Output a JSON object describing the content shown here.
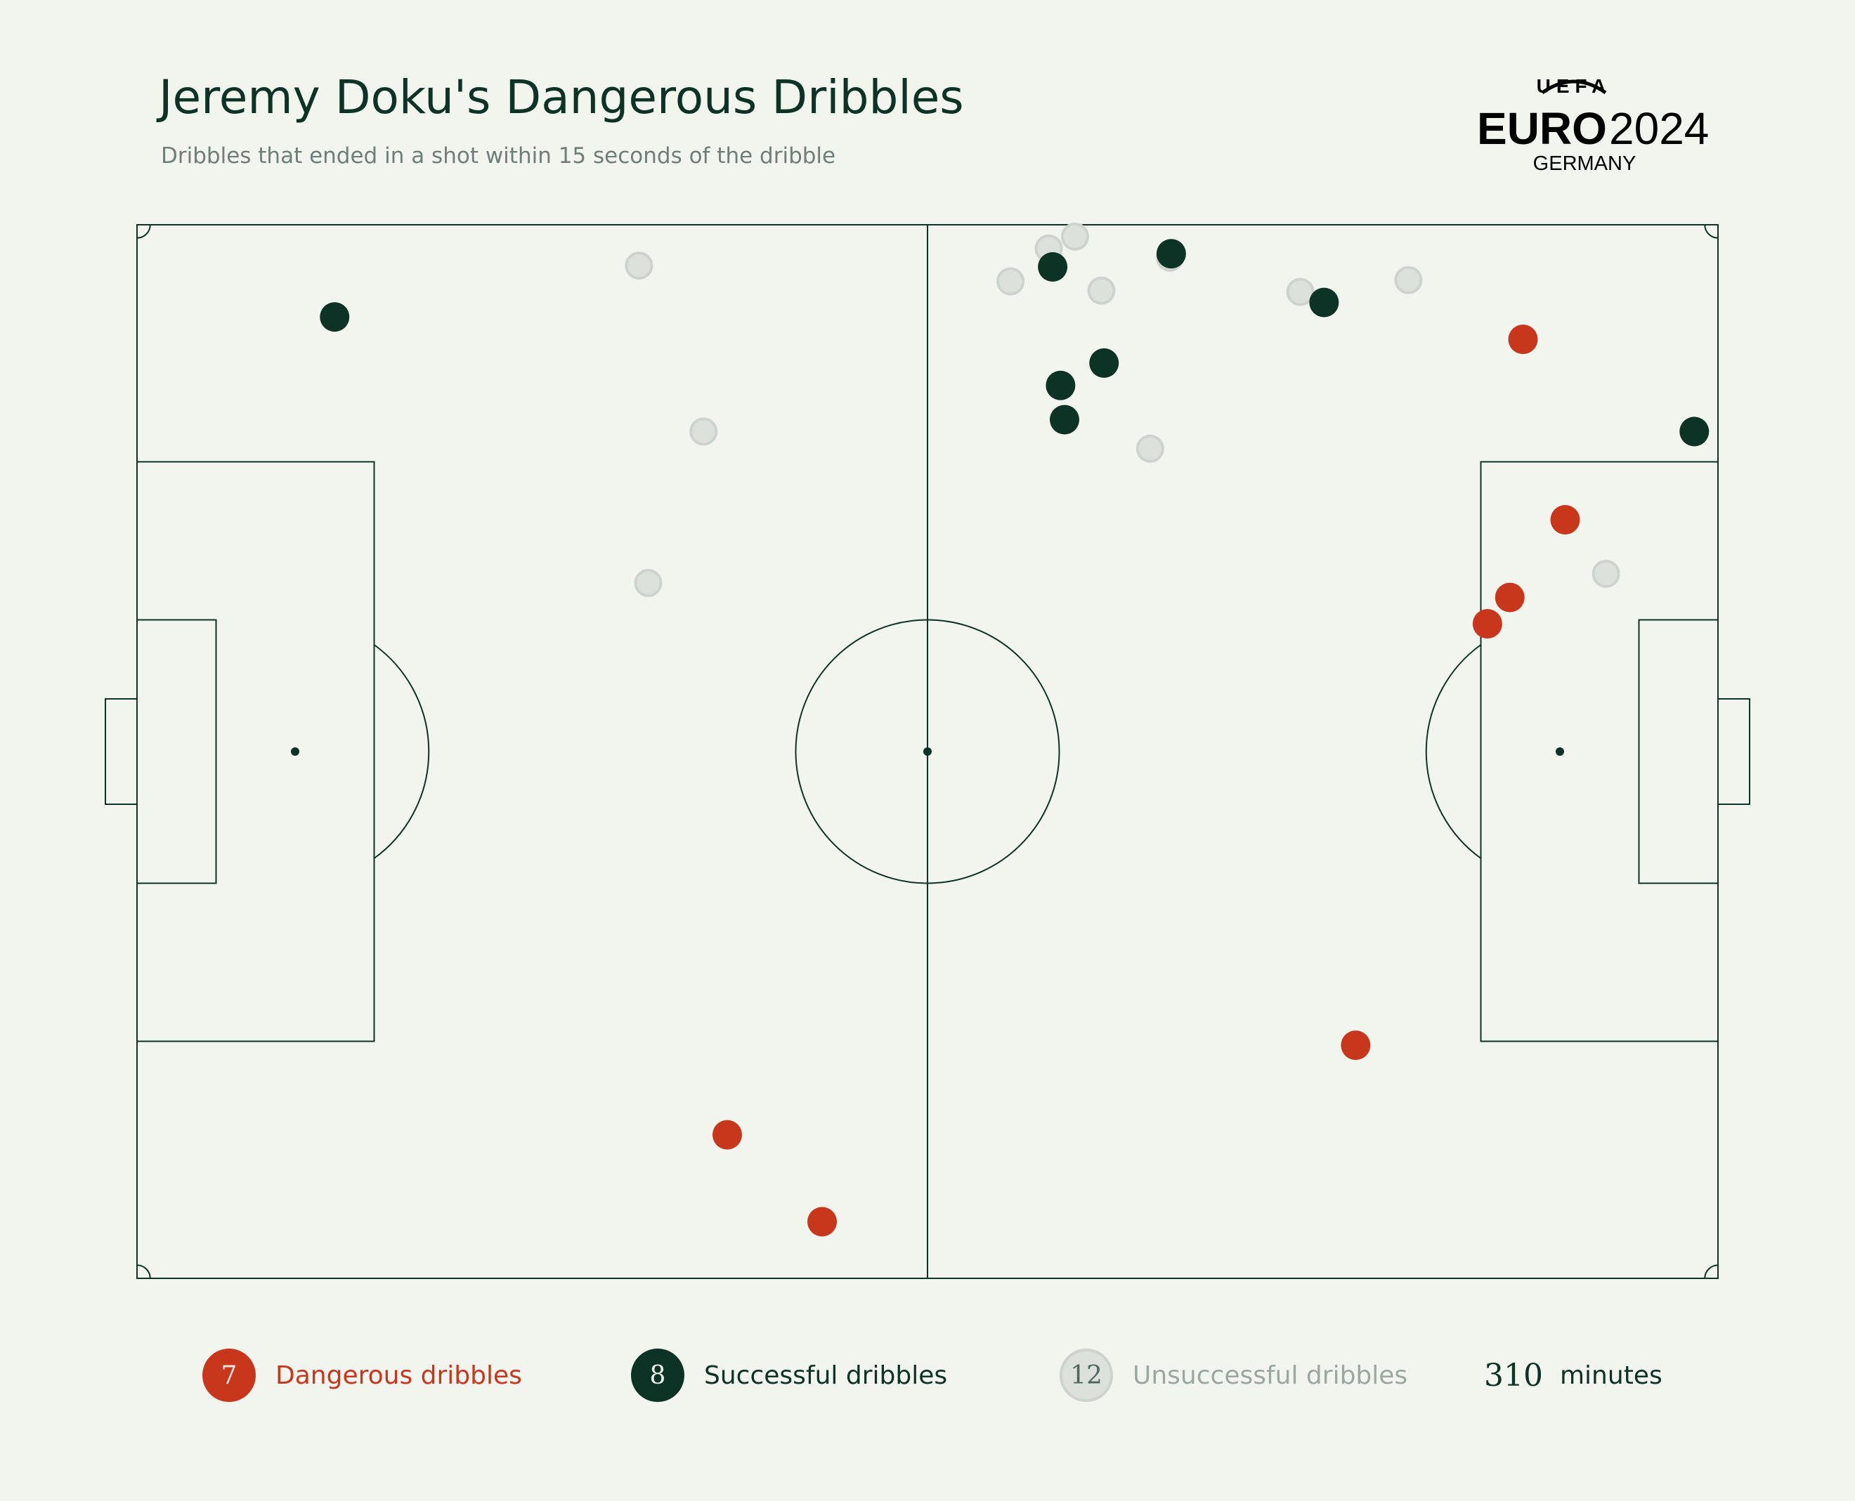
{
  "header": {
    "title": "Jeremy Doku's Dangerous Dribbles",
    "subtitle": "Dribbles that ended in a shot within 15 seconds of the dribble"
  },
  "logo": {
    "top": "UEFA",
    "main_left": "EURO",
    "main_right": "2024",
    "bottom": "GERMANY"
  },
  "legend": {
    "dangerous": {
      "count": "7",
      "label": "Dangerous dribbles",
      "color": "#c8361c"
    },
    "successful": {
      "count": "8",
      "label": "Successful dribbles",
      "color": "#0d3326"
    },
    "unsuccessful": {
      "count": "12",
      "label": "Unsuccessful dribbles",
      "color": "#dde1dc"
    },
    "minutes": {
      "value": "310",
      "label": "minutes"
    }
  },
  "chart_data": {
    "type": "scatter",
    "pitch": {
      "length": 120,
      "width": 80
    },
    "series": [
      {
        "name": "Dangerous dribbles",
        "color": "#c8361c",
        "points": [
          [
            105.2,
            8.7
          ],
          [
            108.4,
            22.4
          ],
          [
            104.2,
            28.3
          ],
          [
            102.5,
            30.3
          ],
          [
            92.5,
            62.3
          ],
          [
            44.8,
            69.1
          ],
          [
            52.0,
            75.7
          ]
        ]
      },
      {
        "name": "Successful dribbles",
        "color": "#0d3326",
        "points": [
          [
            15.0,
            7.0
          ],
          [
            78.5,
            2.2
          ],
          [
            69.5,
            3.2
          ],
          [
            90.1,
            5.9
          ],
          [
            73.4,
            10.5
          ],
          [
            70.1,
            12.2
          ],
          [
            70.4,
            14.8
          ],
          [
            118.2,
            15.7
          ]
        ]
      },
      {
        "name": "Unsuccessful dribbles",
        "color": "#dde1dc",
        "points": [
          [
            38.1,
            3.1
          ],
          [
            71.2,
            0.9
          ],
          [
            69.2,
            1.8
          ],
          [
            66.3,
            4.3
          ],
          [
            73.2,
            5.0
          ],
          [
            78.4,
            2.5
          ],
          [
            88.3,
            5.1
          ],
          [
            96.5,
            4.2
          ],
          [
            43.0,
            15.7
          ],
          [
            76.9,
            17.0
          ],
          [
            38.8,
            27.2
          ],
          [
            111.5,
            26.5
          ]
        ]
      }
    ]
  }
}
